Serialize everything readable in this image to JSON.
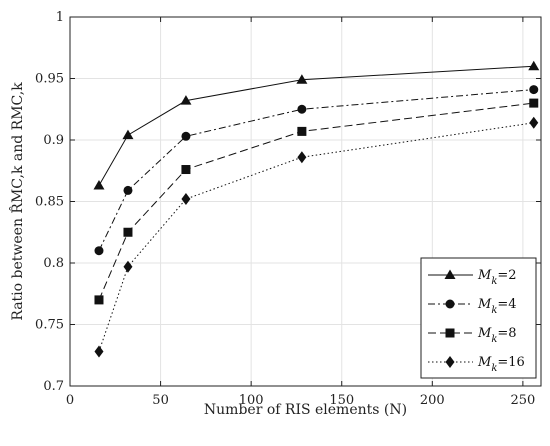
{
  "chart_data": {
    "type": "line",
    "xlabel": "Number of RIS elements (N)",
    "ylabel": "Ratio between R̂MC,k and RMC,k",
    "xlim": [
      0,
      260
    ],
    "ylim": [
      0.7,
      1.0
    ],
    "xticks": [
      "0",
      "50",
      "100",
      "150",
      "200",
      "250"
    ],
    "yticks": [
      "0.7",
      "0.75",
      "0.8",
      "0.85",
      "0.9",
      "0.95",
      "1"
    ],
    "x": [
      16,
      32,
      64,
      128,
      256
    ],
    "series": [
      {
        "name": "Mk=2",
        "label_prefix": "M",
        "label_sub": "k",
        "label_suffix": "=2",
        "marker": "triangle",
        "dash": "solid",
        "values": [
          0.863,
          0.904,
          0.932,
          0.949,
          0.96
        ]
      },
      {
        "name": "Mk=4",
        "label_prefix": "M",
        "label_sub": "k",
        "label_suffix": "=4",
        "marker": "circle",
        "dash": "dashdot",
        "values": [
          0.81,
          0.859,
          0.903,
          0.925,
          0.941
        ]
      },
      {
        "name": "Mk=8",
        "label_prefix": "M",
        "label_sub": "k",
        "label_suffix": "=8",
        "marker": "square",
        "dash": "dashed",
        "values": [
          0.77,
          0.825,
          0.876,
          0.907,
          0.93
        ]
      },
      {
        "name": "Mk=16",
        "label_prefix": "M",
        "label_sub": "k",
        "label_suffix": "=16",
        "marker": "diamond",
        "dash": "dotted",
        "values": [
          0.728,
          0.797,
          0.852,
          0.886,
          0.914
        ]
      }
    ],
    "grid": true,
    "legend_position": "bottom-right"
  }
}
